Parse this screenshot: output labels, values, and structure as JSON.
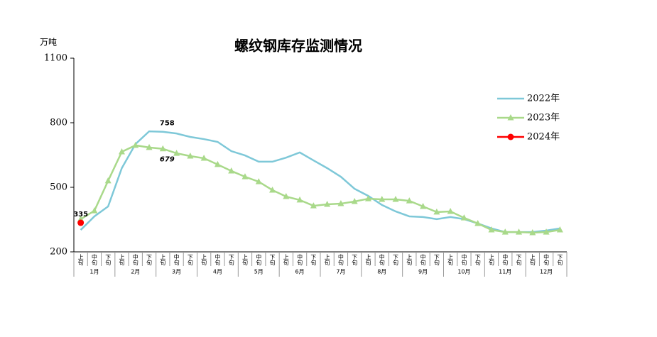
{
  "chart_data": {
    "type": "line",
    "title": "螺纹钢库存监测情况",
    "y_unit": "万吨",
    "categories": [
      "上旬",
      "中旬",
      "下旬",
      "上旬",
      "中旬",
      "下旬",
      "上旬",
      "中旬",
      "下旬",
      "上旬",
      "中旬",
      "下旬",
      "上旬",
      "中旬",
      "下旬",
      "上旬",
      "中旬",
      "下旬",
      "上旬",
      "中旬",
      "下旬",
      "上旬",
      "中旬",
      "下旬",
      "上旬",
      "中旬",
      "下旬",
      "上旬",
      "中旬",
      "下旬",
      "上旬",
      "中旬",
      "下旬",
      "上旬",
      "中旬",
      "下旬"
    ],
    "months": [
      "1月",
      "2月",
      "3月",
      "4月",
      "5月",
      "6月",
      "7月",
      "8月",
      "9月",
      "10月",
      "11月",
      "12月"
    ],
    "ylim": [
      200,
      1100
    ],
    "yticks": [
      200,
      500,
      800,
      1100
    ],
    "grid": false,
    "legend": "right",
    "series": [
      {
        "name": "2022年",
        "color": "#7ec8d8",
        "marker": "none",
        "values": [
          302,
          365,
          411,
          589,
          701,
          760,
          758,
          750,
          734,
          724,
          711,
          668,
          648,
          619,
          619,
          638,
          662,
          625,
          589,
          549,
          493,
          460,
          418,
          388,
          365,
          362,
          352,
          362,
          352,
          332,
          309,
          292,
          292,
          292,
          299,
          309
        ],
        "value_labels": [
          null,
          null,
          null,
          null,
          null,
          null,
          "758",
          null,
          null,
          null,
          null,
          null,
          null,
          null,
          null,
          null,
          null,
          null,
          null,
          null,
          null,
          null,
          null,
          null,
          null,
          null,
          null,
          null,
          null,
          null,
          null,
          null,
          null,
          null,
          null,
          null
        ]
      },
      {
        "name": "2023年",
        "color": "#a9d98a",
        "marker": "triangle",
        "values": [
          352,
          391,
          530,
          665,
          695,
          685,
          679,
          658,
          645,
          635,
          606,
          576,
          549,
          526,
          487,
          457,
          441,
          414,
          421,
          424,
          434,
          447,
          444,
          444,
          437,
          411,
          385,
          388,
          358,
          332,
          302,
          292,
          292,
          289,
          292,
          302
        ],
        "value_labels": [
          null,
          null,
          null,
          null,
          null,
          null,
          "679",
          null,
          null,
          null,
          null,
          null,
          null,
          null,
          null,
          null,
          null,
          null,
          null,
          null,
          null,
          null,
          null,
          null,
          null,
          null,
          null,
          null,
          null,
          null,
          null,
          null,
          null,
          null,
          null,
          null
        ]
      },
      {
        "name": "2024年",
        "color": "#ff0000",
        "marker": "circle",
        "values": [
          335,
          null,
          null,
          null,
          null,
          null,
          null,
          null,
          null,
          null,
          null,
          null,
          null,
          null,
          null,
          null,
          null,
          null,
          null,
          null,
          null,
          null,
          null,
          null,
          null,
          null,
          null,
          null,
          null,
          null,
          null,
          null,
          null,
          null,
          null,
          null
        ],
        "value_labels": [
          "335",
          null,
          null,
          null,
          null,
          null,
          null,
          null,
          null,
          null,
          null,
          null,
          null,
          null,
          null,
          null,
          null,
          null,
          null,
          null,
          null,
          null,
          null,
          null,
          null,
          null,
          null,
          null,
          null,
          null,
          null,
          null,
          null,
          null,
          null,
          null
        ]
      }
    ]
  }
}
